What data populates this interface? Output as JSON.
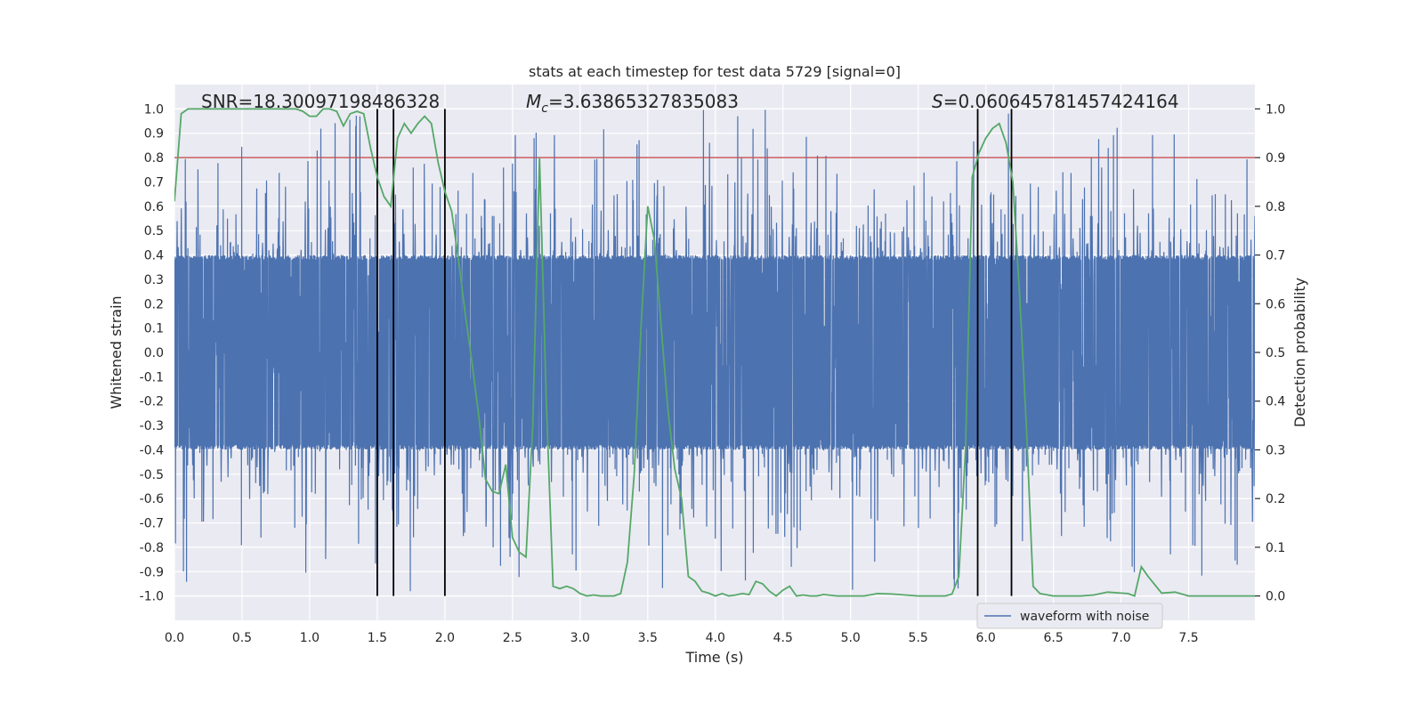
{
  "chart_data": {
    "type": "line",
    "title": "stats at each timestep for test data 5729 [signal=0]",
    "xlabel": "Time (s)",
    "ylabel": "Whitened strain",
    "ylabel_right": "Detection probability",
    "xlim": [
      0,
      7.99
    ],
    "ylim": [
      -1.1,
      1.1
    ],
    "ylim_right": [
      -0.05,
      1.05
    ],
    "xticks": [
      0.0,
      0.5,
      1.0,
      1.5,
      2.0,
      2.5,
      3.0,
      3.5,
      4.0,
      4.5,
      5.0,
      5.5,
      6.0,
      6.5,
      7.0,
      7.5
    ],
    "xtick_labels": [
      "0.0",
      "0.5",
      "1.0",
      "1.5",
      "2.0",
      "2.5",
      "3.0",
      "3.5",
      "4.0",
      "4.5",
      "5.0",
      "5.5",
      "6.0",
      "6.5",
      "7.0",
      "7.5"
    ],
    "yticks": [
      -1.0,
      -0.9,
      -0.8,
      -0.7,
      -0.6,
      -0.5,
      -0.4,
      -0.3,
      -0.2,
      -0.1,
      0.0,
      0.1,
      0.2,
      0.3,
      0.4,
      0.5,
      0.6,
      0.7,
      0.8,
      0.9,
      1.0
    ],
    "ytick_labels": [
      "-1.0",
      "-0.9",
      "-0.8",
      "-0.7",
      "-0.6",
      "-0.5",
      "-0.4",
      "-0.3",
      "-0.2",
      "-0.1",
      "0.0",
      "0.1",
      "0.2",
      "0.3",
      "0.4",
      "0.5",
      "0.6",
      "0.7",
      "0.8",
      "0.9",
      "1.0"
    ],
    "yticks_right": [
      0.0,
      0.1,
      0.2,
      0.3,
      0.4,
      0.5,
      0.6,
      0.7,
      0.8,
      0.9,
      1.0
    ],
    "ytick_labels_right": [
      "0.0",
      "0.1",
      "0.2",
      "0.3",
      "0.4",
      "0.5",
      "0.6",
      "0.7",
      "0.8",
      "0.9",
      "1.0"
    ],
    "grid": true,
    "annotations": {
      "snr": "SNR=18.30097198486328",
      "mc_symbol": "M",
      "mc_subscript": "c",
      "mc_value": "=3.63865327835083",
      "s_symbol": "S",
      "s_value": "=0.060645781457424164"
    },
    "threshold": {
      "value": 0.9,
      "color": "#c44e52"
    },
    "vertical_lines": [
      1.5,
      1.62,
      2.0,
      5.94,
      6.19
    ],
    "waveform": {
      "name": "waveform with noise",
      "color": "#4c72b0",
      "sample_count": 4096,
      "core_amplitude": 0.4,
      "noise_seed": 5729
    },
    "detection_probability": {
      "color": "#55a868",
      "t": [
        0.0,
        0.05,
        0.1,
        0.15,
        0.2,
        0.3,
        0.4,
        0.5,
        0.6,
        0.7,
        0.8,
        0.9,
        0.95,
        1.0,
        1.05,
        1.1,
        1.15,
        1.2,
        1.25,
        1.3,
        1.35,
        1.4,
        1.45,
        1.5,
        1.55,
        1.6,
        1.65,
        1.7,
        1.75,
        1.8,
        1.85,
        1.9,
        1.95,
        2.0,
        2.05,
        2.1,
        2.15,
        2.2,
        2.25,
        2.3,
        2.35,
        2.4,
        2.45,
        2.5,
        2.55,
        2.6,
        2.65,
        2.7,
        2.75,
        2.8,
        2.85,
        2.9,
        2.95,
        3.0,
        3.05,
        3.1,
        3.15,
        3.2,
        3.25,
        3.3,
        3.35,
        3.4,
        3.45,
        3.5,
        3.55,
        3.6,
        3.65,
        3.7,
        3.75,
        3.8,
        3.85,
        3.9,
        3.95,
        4.0,
        4.05,
        4.1,
        4.15,
        4.2,
        4.25,
        4.3,
        4.35,
        4.4,
        4.45,
        4.5,
        4.55,
        4.6,
        4.65,
        4.7,
        4.75,
        4.8,
        4.9,
        5.0,
        5.1,
        5.2,
        5.3,
        5.4,
        5.5,
        5.6,
        5.65,
        5.7,
        5.75,
        5.8,
        5.85,
        5.9,
        5.95,
        6.0,
        6.05,
        6.1,
        6.15,
        6.2,
        6.25,
        6.3,
        6.35,
        6.4,
        6.5,
        6.6,
        6.7,
        6.8,
        6.9,
        7.0,
        7.05,
        7.1,
        7.15,
        7.2,
        7.3,
        7.4,
        7.5,
        7.6,
        7.7,
        7.8,
        7.9,
        7.99
      ],
      "p": [
        0.81,
        0.99,
        1.0,
        1.0,
        1.0,
        1.0,
        1.0,
        1.0,
        1.0,
        1.0,
        1.0,
        1.0,
        0.995,
        0.985,
        0.985,
        1.0,
        1.0,
        0.995,
        0.965,
        0.99,
        0.995,
        0.99,
        0.92,
        0.86,
        0.82,
        0.8,
        0.94,
        0.97,
        0.95,
        0.97,
        0.985,
        0.97,
        0.89,
        0.83,
        0.79,
        0.69,
        0.58,
        0.48,
        0.37,
        0.24,
        0.215,
        0.21,
        0.27,
        0.12,
        0.09,
        0.08,
        0.35,
        0.9,
        0.4,
        0.02,
        0.015,
        0.02,
        0.015,
        0.005,
        0.0,
        0.002,
        0.0,
        0.0,
        0.0,
        0.005,
        0.07,
        0.25,
        0.55,
        0.8,
        0.73,
        0.55,
        0.38,
        0.26,
        0.2,
        0.04,
        0.03,
        0.01,
        0.006,
        0.0,
        0.005,
        0.0,
        0.002,
        0.005,
        0.003,
        0.03,
        0.025,
        0.01,
        0.0,
        0.012,
        0.02,
        0.0,
        0.002,
        0.0,
        0.0,
        0.003,
        0.0,
        0.0,
        0.0,
        0.005,
        0.004,
        0.002,
        0.0,
        0.0,
        0.0,
        0.0,
        0.004,
        0.04,
        0.3,
        0.86,
        0.91,
        0.94,
        0.96,
        0.97,
        0.93,
        0.85,
        0.62,
        0.35,
        0.02,
        0.005,
        0.0,
        0.0,
        0.0,
        0.002,
        0.008,
        0.006,
        0.005,
        0.0,
        0.06,
        0.04,
        0.006,
        0.008,
        0.0,
        0.0,
        0.0,
        0.0,
        0.0,
        0.0
      ]
    },
    "legend": {
      "placement": "bottom-right",
      "entries": [
        "waveform with noise"
      ]
    }
  }
}
